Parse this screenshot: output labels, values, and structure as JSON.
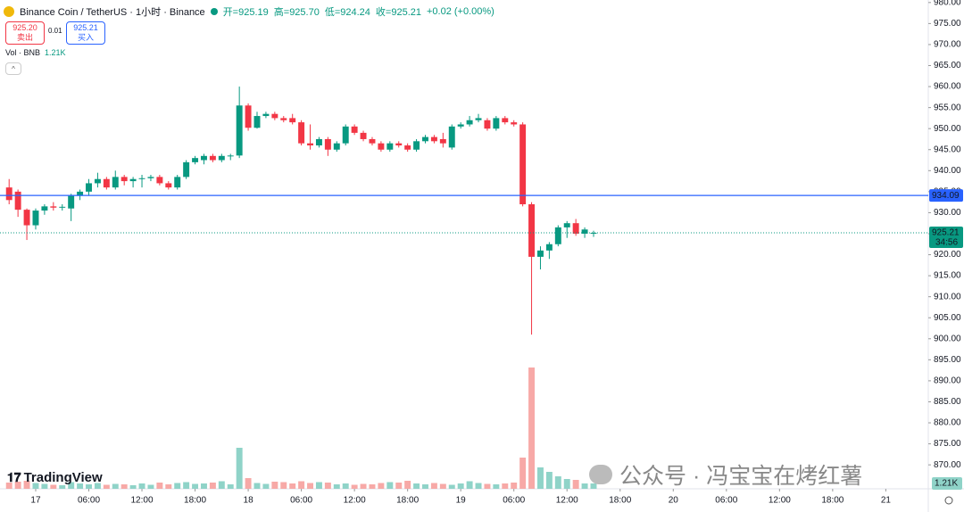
{
  "chart_data": {
    "type": "candlestick",
    "title": "Binance Coin / TetherUS · 1小时 · Binance",
    "ohlc_legend": [
      "开=925.19",
      "高=925.70",
      "低=924.24",
      "收=925.21",
      "+0.02 (+0.00%)"
    ],
    "sell": {
      "price": "925.20",
      "label": "卖出"
    },
    "spread": "0.01",
    "buy": {
      "price": "925.21",
      "label": "买入"
    },
    "up_color": "#089981",
    "down_color": "#f23645",
    "up_volume_color": "#8fd3c8",
    "down_volume_color": "#f7a9a7",
    "grid": false,
    "x": [
      -3,
      -2,
      -1,
      0,
      1,
      2,
      3,
      4,
      5,
      6,
      7,
      8,
      9,
      10,
      11,
      12,
      13,
      14,
      15,
      16,
      17,
      18,
      19,
      20,
      21,
      22,
      23,
      24,
      25,
      26,
      27,
      28,
      29,
      30,
      31,
      32,
      33,
      34,
      35,
      36,
      37,
      38,
      39,
      40,
      41,
      42,
      43,
      44,
      45,
      46,
      47,
      48,
      49,
      50,
      51,
      52,
      53,
      54,
      55,
      56,
      57,
      58,
      59,
      60,
      61,
      62,
      63
    ],
    "open": [
      936,
      935,
      930.7,
      927,
      930.5,
      931.5,
      931.2,
      931,
      934,
      935,
      937,
      938,
      936,
      938.5,
      937.5,
      938,
      938.2,
      938.5,
      937,
      936,
      938.5,
      942,
      942.5,
      943.5,
      942.5,
      943.5,
      943.6,
      955.5,
      950.2,
      953,
      953.5,
      952.5,
      952.5,
      951.5,
      946.5,
      946,
      947.5,
      945,
      946.5,
      950.5,
      949,
      947.5,
      946.5,
      945,
      946.5,
      946,
      945,
      947,
      948,
      947.5,
      945.5,
      950.5,
      951,
      952,
      952,
      950,
      952.5,
      951.5,
      951,
      932,
      919.5,
      921,
      922.5,
      926.5,
      927.5,
      925,
      925.19
    ],
    "high": [
      938,
      935.5,
      931,
      931,
      932,
      932.5,
      932,
      934.5,
      935.5,
      938,
      939.5,
      938.5,
      940,
      939,
      938.5,
      939,
      939,
      939,
      937.5,
      939,
      942.5,
      943.5,
      944,
      944,
      944,
      944,
      960,
      956,
      954,
      954,
      954,
      953,
      953.5,
      952,
      951,
      948,
      948,
      947,
      951,
      951,
      949.5,
      948,
      947,
      947,
      947,
      946.5,
      947.5,
      948.5,
      948.5,
      949,
      951,
      951.5,
      953,
      953.5,
      952.5,
      953,
      953,
      952,
      951.5,
      932.5,
      922,
      923,
      927,
      928,
      928.5,
      926.5,
      925.7
    ],
    "low": [
      932,
      929,
      923.5,
      926,
      929.5,
      930.5,
      930.5,
      928,
      933,
      934,
      936,
      935.5,
      935.5,
      936.5,
      936,
      936,
      937.5,
      936.5,
      935.5,
      935.5,
      938,
      941.5,
      941.5,
      942,
      942,
      942.5,
      943,
      949.5,
      950,
      952.5,
      952,
      951.5,
      951,
      946,
      945,
      945.5,
      943.5,
      944.5,
      946,
      948.5,
      947,
      946,
      944.5,
      944.5,
      945.5,
      944.5,
      944.5,
      946.5,
      946.5,
      945.5,
      945,
      950,
      950.5,
      951.5,
      949.5,
      949.5,
      951,
      950.5,
      931.5,
      901,
      916.5,
      919,
      922,
      924,
      924.5,
      924,
      924.24
    ],
    "close": [
      933,
      930.7,
      927,
      930.5,
      931.5,
      931.2,
      931.4,
      934,
      935,
      937,
      938,
      936,
      938.5,
      937.5,
      938,
      938.2,
      938.5,
      937,
      936,
      938.5,
      942,
      943,
      943.5,
      942.5,
      943.5,
      943.6,
      955.5,
      950.2,
      953,
      953.5,
      952.5,
      952,
      951.5,
      946.5,
      946,
      947.5,
      945,
      946.5,
      950.5,
      949,
      947.5,
      946.5,
      945,
      946.5,
      946,
      945,
      947,
      948,
      947,
      946.5,
      950.5,
      951,
      952,
      952.5,
      950,
      952.5,
      951.5,
      951,
      932,
      919.5,
      921,
      922.5,
      926.5,
      927.5,
      925,
      926,
      925.21
    ],
    "volume": {
      "name": "Vol · BNB",
      "last_label": "1.21K",
      "ylim": [
        0,
        30000
      ],
      "values": [
        1400,
        1600,
        1800,
        1300,
        1100,
        900,
        800,
        1500,
        1200,
        1000,
        1300,
        900,
        1100,
        1000,
        800,
        1200,
        900,
        1400,
        1000,
        1300,
        1500,
        1100,
        1200,
        1400,
        1700,
        1000,
        9200,
        2400,
        1300,
        1100,
        1600,
        1500,
        1200,
        1700,
        1300,
        1500,
        1400,
        1000,
        1200,
        900,
        1100,
        1000,
        1300,
        1500,
        1400,
        1800,
        1200,
        1000,
        1300,
        1100,
        900,
        1200,
        1700,
        1300,
        1100,
        1000,
        1200,
        1400,
        7000,
        27200,
        4800,
        3800,
        2800,
        2200,
        2000,
        1200,
        1210
      ]
    },
    "ylim": [
      864.3,
      980.6
    ],
    "yticks": [
      {
        "value": 870,
        "label": "870.00"
      },
      {
        "value": 875,
        "label": "875.00"
      },
      {
        "value": 880,
        "label": "880.00"
      },
      {
        "value": 885,
        "label": "885.00"
      },
      {
        "value": 890,
        "label": "890.00"
      },
      {
        "value": 895,
        "label": "895.00"
      },
      {
        "value": 900,
        "label": "900.00"
      },
      {
        "value": 905,
        "label": "905.00"
      },
      {
        "value": 910,
        "label": "910.00"
      },
      {
        "value": 915,
        "label": "915.00"
      },
      {
        "value": 920,
        "label": "920.00"
      },
      {
        "value": 925,
        "label": "925.00"
      },
      {
        "value": 930,
        "label": "930.00"
      },
      {
        "value": 935,
        "label": "935.00"
      },
      {
        "value": 940,
        "label": "940.00"
      },
      {
        "value": 945,
        "label": "945.00"
      },
      {
        "value": 950,
        "label": "950.00"
      },
      {
        "value": 955,
        "label": "955.00"
      },
      {
        "value": 960,
        "label": "960.00"
      },
      {
        "value": 965,
        "label": "965.00"
      },
      {
        "value": 970,
        "label": "970.00"
      },
      {
        "value": 975,
        "label": "975.00"
      },
      {
        "value": 980,
        "label": "980.00"
      }
    ],
    "xlim": [
      -4.03,
      100.8
    ],
    "xticks": [
      {
        "value": 0,
        "label": "17"
      },
      {
        "value": 6,
        "label": "06:00"
      },
      {
        "value": 12,
        "label": "12:00"
      },
      {
        "value": 18,
        "label": "18:00"
      },
      {
        "value": 24,
        "label": "18"
      },
      {
        "value": 30,
        "label": "06:00"
      },
      {
        "value": 36,
        "label": "12:00"
      },
      {
        "value": 42,
        "label": "18:00"
      },
      {
        "value": 48,
        "label": "19"
      },
      {
        "value": 54,
        "label": "06:00"
      },
      {
        "value": 60,
        "label": "12:00"
      },
      {
        "value": 66,
        "label": "18:00"
      },
      {
        "value": 72,
        "label": "20"
      },
      {
        "value": 78,
        "label": "06:00"
      },
      {
        "value": 84,
        "label": "12:00"
      },
      {
        "value": 90,
        "label": "18:00"
      },
      {
        "value": 96,
        "label": "21"
      }
    ],
    "level_line": {
      "value": 934.09,
      "color": "#2962ff"
    },
    "last_price": {
      "value": 925.21,
      "countdown": "34:56"
    },
    "logo": "TradingView",
    "watermark": "公众号 · 冯宝宝在烤红薯"
  }
}
